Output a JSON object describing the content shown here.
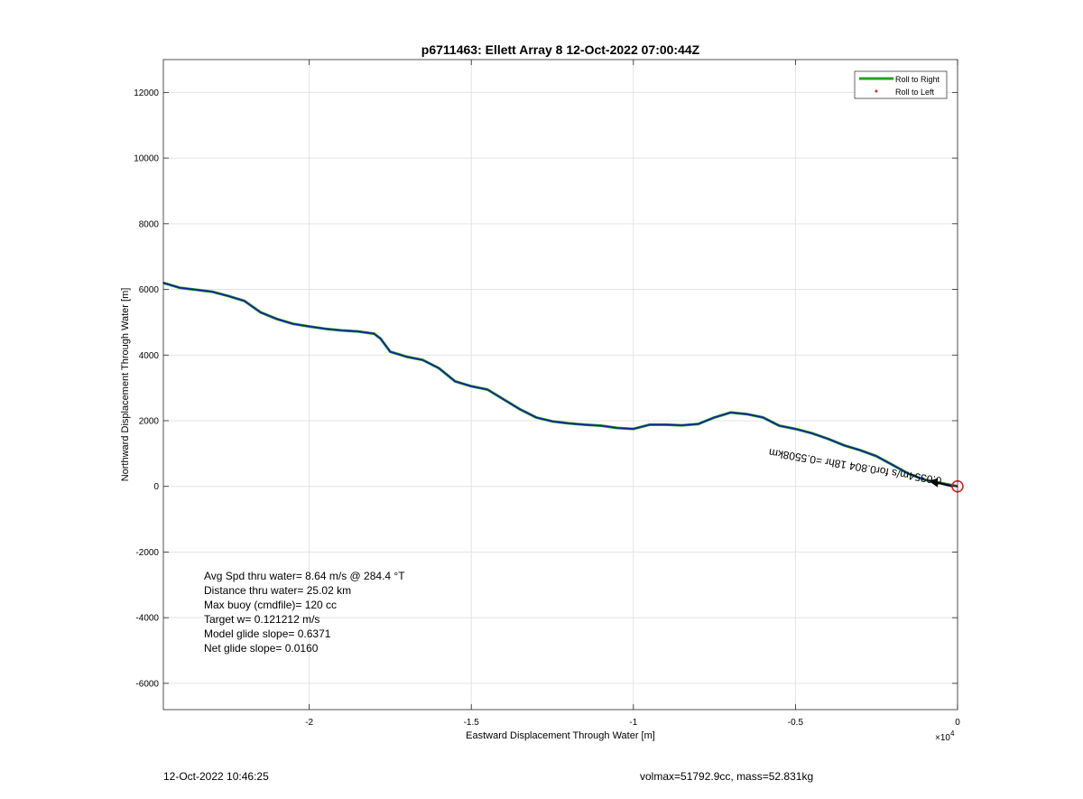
{
  "chart_data": {
    "type": "line",
    "title": "p6711463: Ellett Array 8 12-Oct-2022 07:00:44Z",
    "xlabel": "Eastward Displacement Through Water [m]",
    "ylabel": "Northward Displacement Through Water [m]",
    "x_exponent_label": "×10",
    "x_exponent_power": "4",
    "xlim": [
      -24500,
      0
    ],
    "ylim": [
      -6800,
      13000
    ],
    "x_ticks": [
      -20000,
      -15000,
      -10000,
      -5000,
      0
    ],
    "x_tick_labels": [
      "-2",
      "-1.5",
      "-1",
      "-0.5",
      "0"
    ],
    "y_ticks": [
      -6000,
      -4000,
      -2000,
      0,
      2000,
      4000,
      6000,
      8000,
      10000,
      12000
    ],
    "y_tick_labels": [
      "-6000",
      "-4000",
      "-2000",
      "0",
      "2000",
      "4000",
      "6000",
      "8000",
      "10000",
      "12000"
    ],
    "grid": true,
    "legend_position": "top-right",
    "series": [
      {
        "name": "Roll to Right",
        "color": "#1ea51e",
        "style": "line",
        "x": [
          -24500,
          -24000,
          -23000,
          -22500,
          -22000,
          -21500,
          -21000,
          -20500,
          -20000,
          -19500,
          -19000,
          -18500,
          -18000,
          -17800,
          -17500,
          -17000,
          -16500,
          -16000,
          -15500,
          -15000,
          -14500,
          -14000,
          -13500,
          -13000,
          -12500,
          -12000,
          -11500,
          -11000,
          -10500,
          -10000,
          -9500,
          -9000,
          -8500,
          -8000,
          -7500,
          -7000,
          -6500,
          -6000,
          -5500,
          -5000,
          -4500,
          -4000,
          -3500,
          -3000,
          -2500,
          -2000,
          -1500,
          -1000,
          -500,
          0
        ],
        "y": [
          6200,
          6050,
          5930,
          5800,
          5650,
          5300,
          5100,
          4950,
          4870,
          4800,
          4750,
          4720,
          4650,
          4500,
          4100,
          3950,
          3850,
          3600,
          3200,
          3050,
          2950,
          2650,
          2350,
          2100,
          1980,
          1920,
          1880,
          1850,
          1780,
          1750,
          1880,
          1880,
          1860,
          1900,
          2100,
          2250,
          2200,
          2100,
          1850,
          1750,
          1620,
          1450,
          1250,
          1100,
          920,
          650,
          380,
          200,
          100,
          0
        ]
      },
      {
        "name": "Roll to Left",
        "color": "#e11f1f",
        "style": "dots",
        "x": [
          -24500,
          -24000,
          -23000,
          -22500,
          -22000,
          -21500,
          -21000,
          -20500,
          -20000,
          -19500,
          -19000,
          -18500,
          -18000,
          -17800,
          -17500,
          -17000,
          -16500,
          -16000,
          -15500,
          -15000,
          -14500,
          -14000,
          -13500,
          -13000,
          -12500,
          -12000,
          -11500,
          -11000,
          -10500,
          -10000,
          -9500,
          -9000,
          -8500,
          -8000,
          -7500,
          -7000,
          -6500,
          -6000,
          -5500,
          -5000,
          -4500,
          -4000,
          -3500,
          -3000,
          -2500,
          -2000,
          -1500,
          -1000,
          -500,
          0
        ],
        "y": [
          6200,
          6050,
          5930,
          5800,
          5650,
          5300,
          5100,
          4950,
          4870,
          4800,
          4750,
          4720,
          4650,
          4500,
          4100,
          3950,
          3850,
          3600,
          3200,
          3050,
          2950,
          2650,
          2350,
          2100,
          1980,
          1920,
          1880,
          1850,
          1780,
          1750,
          1880,
          1880,
          1860,
          1900,
          2100,
          2250,
          2200,
          2100,
          1850,
          1750,
          1620,
          1450,
          1250,
          1100,
          920,
          650,
          380,
          200,
          100,
          0
        ]
      }
    ],
    "track_color": "#1a1aa6",
    "current_position": {
      "x": 0,
      "y": 0,
      "color": "#e11f1f"
    },
    "arrow_annotation": {
      "text": "0.0354m/s for0.804 18hr =0.5508km",
      "x": -5800,
      "y": 1150,
      "rotation_deg": 189.5
    },
    "stats_box": {
      "lines": [
        "Avg Spd thru water=  8.64 m/s @ 284.4 °T",
        "Distance thru water= 25.02 km",
        "Max buoy (cmdfile)= 120 cc",
        "Target w= 0.121212 m/s",
        "Model glide slope= 0.6371",
        "Net glide slope= 0.0160"
      ]
    }
  },
  "footer": {
    "timestamp": "12-Oct-2022 10:46:25",
    "volmax_mass": "volmax=51792.9cc, mass=52.831kg"
  }
}
